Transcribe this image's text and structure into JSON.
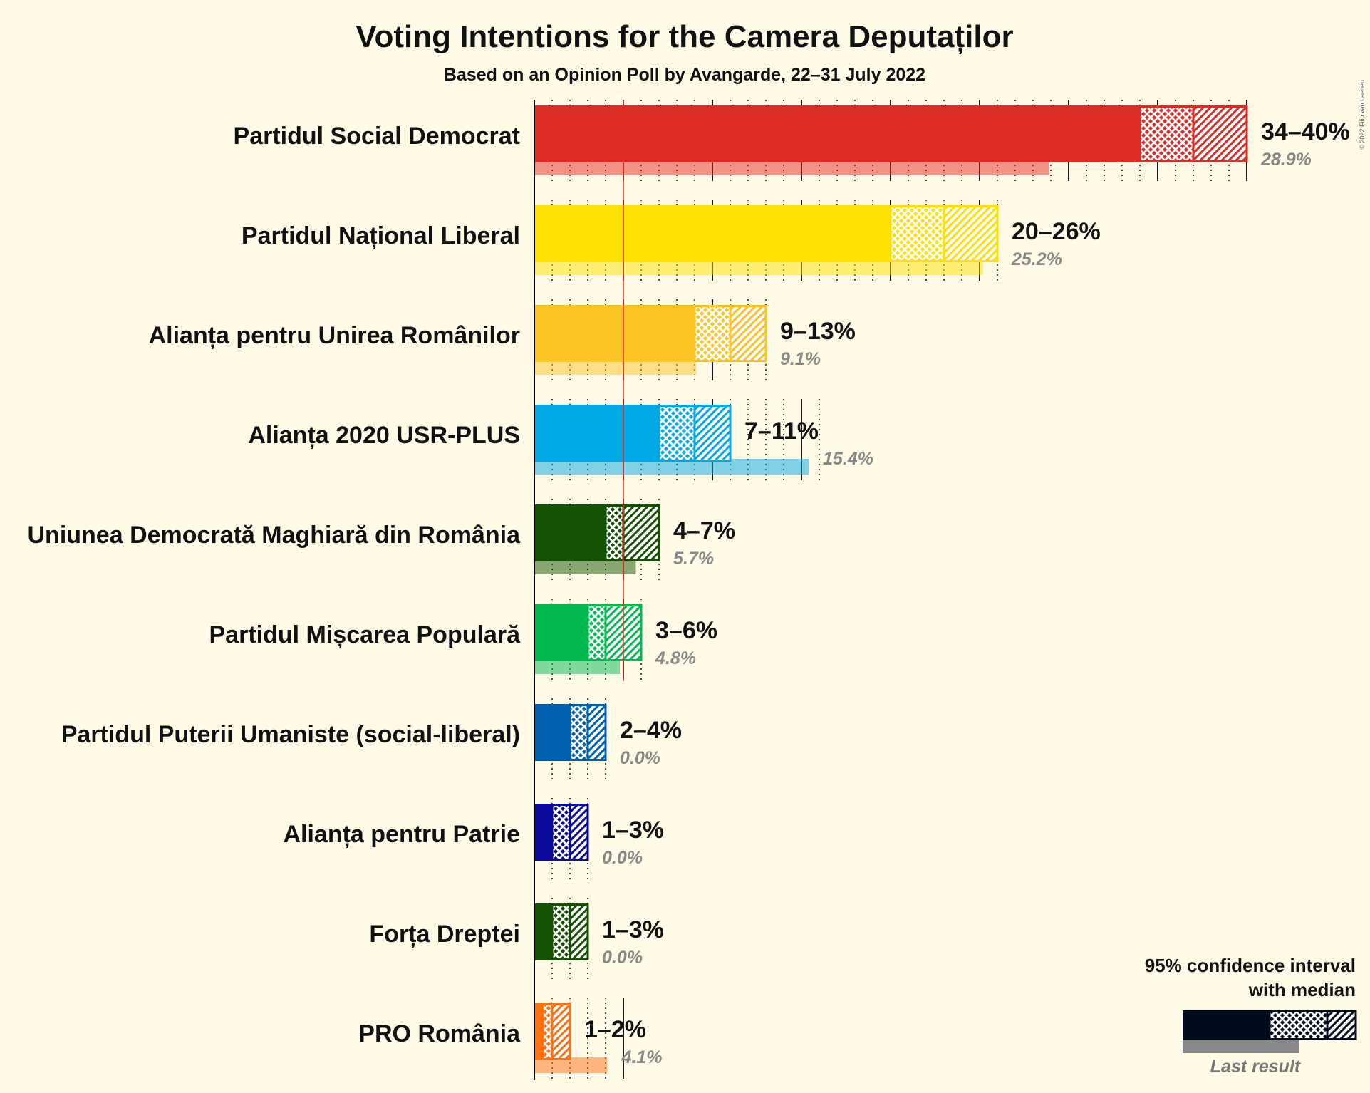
{
  "title": "Voting Intentions for the Camera Deputaților",
  "subtitle": "Based on an Opinion Poll by Avangarde, 22–31 July 2022",
  "copyright": "© 2022 Filip van Laenen",
  "legend": {
    "line1": "95% confidence interval",
    "line2": "with median",
    "last_result": "Last result",
    "color": "#020a1e"
  },
  "chart_data": {
    "type": "bar",
    "orientation": "horizontal",
    "threshold": 5,
    "threshold_color": "#e03020",
    "parties": [
      {
        "name": "Partidul Social Democrat",
        "color": "#dd2c26",
        "ci_low": 34,
        "median": 37,
        "ci_high": 40,
        "range_label": "34–40%",
        "last_result": 28.9,
        "last_label": "28.9%"
      },
      {
        "name": "Partidul Național Liberal",
        "color": "#ffe000",
        "ci_low": 20,
        "median": 23,
        "ci_high": 26,
        "range_label": "20–26%",
        "last_result": 25.2,
        "last_label": "25.2%"
      },
      {
        "name": "Alianța pentru Unirea Românilor",
        "color": "#fcc325",
        "ci_low": 9,
        "median": 11,
        "ci_high": 13,
        "range_label": "9–13%",
        "last_result": 9.1,
        "last_label": "9.1%"
      },
      {
        "name": "Alianța 2020 USR-PLUS",
        "color": "#00a8e6",
        "ci_low": 7,
        "median": 9,
        "ci_high": 11,
        "range_label": "7–11%",
        "last_result": 15.4,
        "last_label": "15.4%"
      },
      {
        "name": "Uniunea Democrată Maghiară din România",
        "color": "#135200",
        "ci_low": 4,
        "median": 5,
        "ci_high": 7,
        "range_label": "4–7%",
        "last_result": 5.7,
        "last_label": "5.7%"
      },
      {
        "name": "Partidul Mișcarea Populară",
        "color": "#00b94f",
        "ci_low": 3,
        "median": 4,
        "ci_high": 6,
        "range_label": "3–6%",
        "last_result": 4.8,
        "last_label": "4.8%"
      },
      {
        "name": "Partidul Puterii Umaniste (social-liberal)",
        "color": "#0060b0",
        "ci_low": 2,
        "median": 3,
        "ci_high": 4,
        "range_label": "2–4%",
        "last_result": 0.0,
        "last_label": "0.0%"
      },
      {
        "name": "Alianța pentru Patrie",
        "color": "#0a0a9a",
        "ci_low": 1,
        "median": 2,
        "ci_high": 3,
        "range_label": "1–3%",
        "last_result": 0.0,
        "last_label": "0.0%"
      },
      {
        "name": "Forța Dreptei",
        "color": "#135200",
        "ci_low": 1,
        "median": 2,
        "ci_high": 3,
        "range_label": "1–3%",
        "last_result": 0.0,
        "last_label": "0.0%"
      },
      {
        "name": "PRO România",
        "color": "#ff7010",
        "ci_low": 0.5,
        "median": 1,
        "ci_high": 2,
        "range_label": "1–2%",
        "last_result": 4.1,
        "last_label": "4.1%"
      }
    ]
  }
}
